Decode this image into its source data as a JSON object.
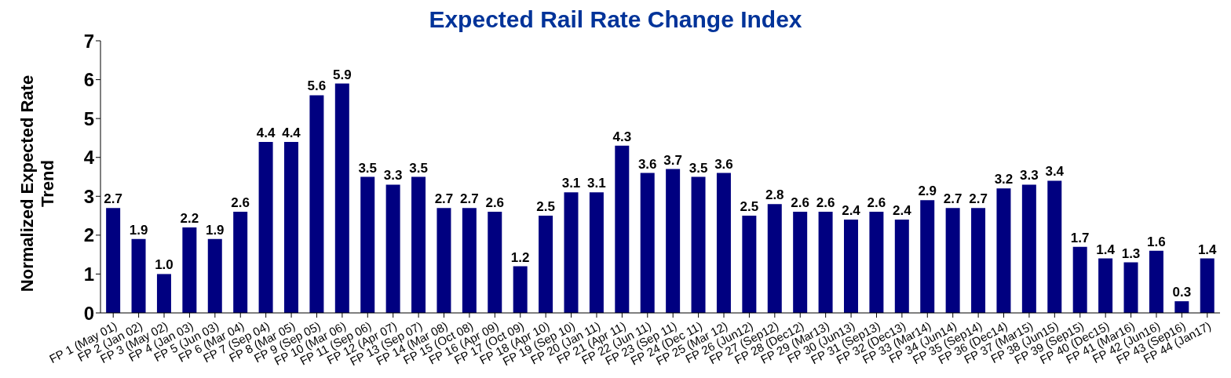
{
  "chart_data": {
    "type": "bar",
    "title": "Expected Rail Rate Change Index",
    "ylabel": "Normalized Expected Rate Trend",
    "categories": [
      "FP 1 (May 01)",
      "FP 2 (Jan 02)",
      "FP 3 (May 02)",
      "FP 4 (Jan 03)",
      "FP 5 (Jun 03)",
      "FP 6 (Mar 04)",
      "FP 7 (Sep 04)",
      "FP 8 (Mar 05)",
      "FP 9 (Sep 05)",
      "FP 10 (Mar 06)",
      "FP 11 (Sep 06)",
      "FP 12 (Apr 07)",
      "FP 13 (Sep 07)",
      "FP 14 (Mar 08)",
      "FP 15 (Oct 08)",
      "FP 16 (Apr 09)",
      "FP 17 (Oct 09)",
      "FP 18 (Apr 10)",
      "FP 19 (Sep 10)",
      "FP 20 (Jan 11)",
      "FP 21 (Apr 11)",
      "FP 22 (Jun 11)",
      "FP 23 (Sep 11)",
      "FP 24 (Dec 11)",
      "FP 25 (Mar 12)",
      "FP 26 (Jun12)",
      "FP 27 (Sep12)",
      "FP 28 (Dec12)",
      "FP 29 (Mar13)",
      "FP 30 (Jun13)",
      "FP 31 (Sep13)",
      "FP 32 (Dec13)",
      "FP 33 (Mar14)",
      "FP 34 (Jun14)",
      "FP 35 (Sep14)",
      "FP 36 (Dec14)",
      "FP 37 (Mar15)",
      "FP 38 (Jun15)",
      "FP 39 (Sep15)",
      "FP 40 (Dec15)",
      "FP 41 (Mar16)",
      "FP 42 (Jun16)",
      "FP 43 (Sep16)",
      "FP 44 (Jan17)"
    ],
    "values": [
      2.7,
      1.9,
      1.0,
      2.2,
      1.9,
      2.6,
      4.4,
      4.4,
      5.6,
      5.9,
      3.5,
      3.3,
      3.5,
      2.7,
      2.7,
      2.6,
      1.2,
      2.5,
      3.1,
      3.1,
      4.3,
      3.6,
      3.7,
      3.5,
      3.6,
      2.5,
      2.8,
      2.6,
      2.6,
      2.4,
      2.6,
      2.4,
      2.9,
      2.7,
      2.7,
      3.2,
      3.3,
      3.4,
      1.7,
      1.4,
      1.3,
      1.6,
      0.3,
      1.4
    ],
    "value_labels": [
      "2.7",
      "1.9",
      "1.0",
      "2.2",
      "1.9",
      "2.6",
      "4.4",
      "4.4",
      "5.6",
      "5.9",
      "3.5",
      "3.3",
      "3.5",
      "2.7",
      "2.7",
      "2.6",
      "1.2",
      "2.5",
      "3.1",
      "3.1",
      "4.3",
      "3.6",
      "3.7",
      "3.5",
      "3.6",
      "2.5",
      "2.8",
      "2.6",
      "2.6",
      "2.4",
      "2.6",
      "2.4",
      "2.9",
      "2.7",
      "2.7",
      "3.2",
      "3.3",
      "3.4",
      "1.7",
      "1.4",
      "1.3",
      "1.6",
      "0.3",
      "1.4"
    ],
    "color": "#000080",
    "ylim": [
      0,
      7
    ],
    "yticks": [
      0,
      1,
      2,
      3,
      4,
      5,
      6,
      7
    ],
    "grid": false,
    "legend": false
  }
}
